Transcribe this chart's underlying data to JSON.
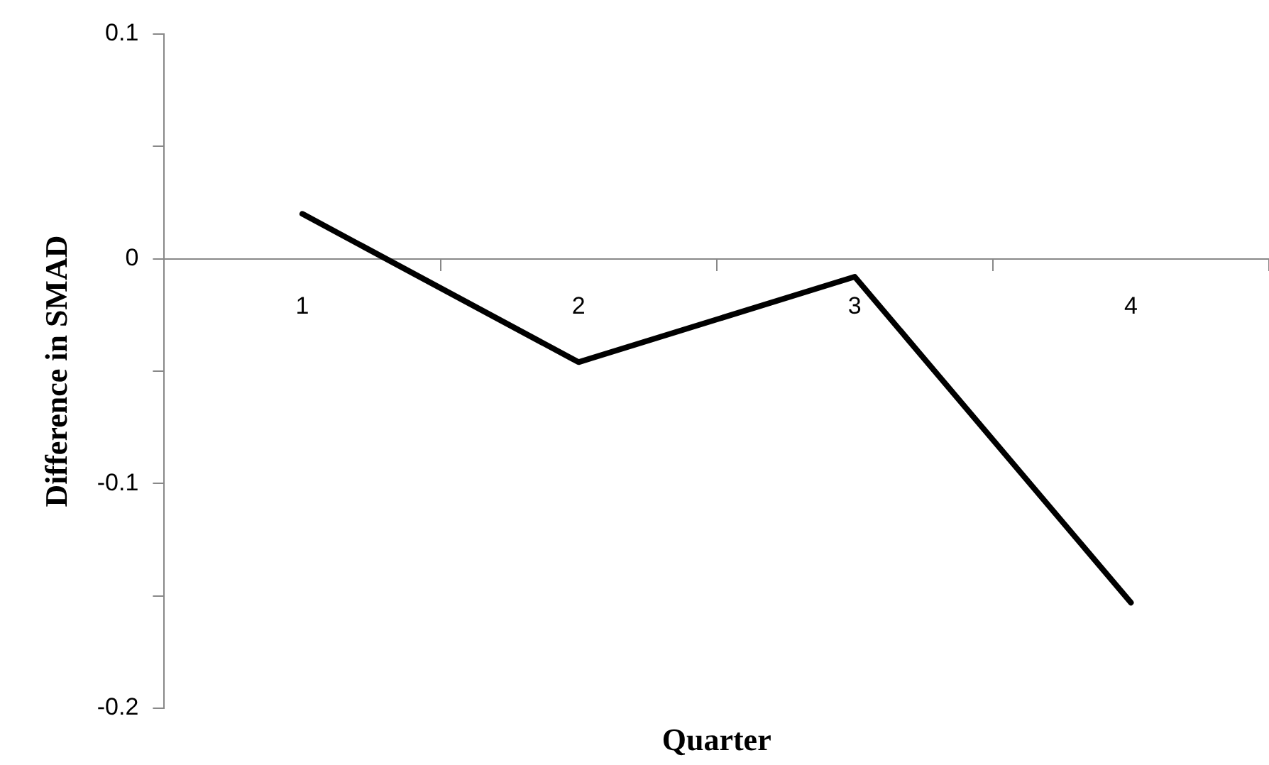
{
  "chart_data": {
    "type": "line",
    "xlabel": "Quarter",
    "ylabel": "Difference in SMAD",
    "categories": [
      "1",
      "2",
      "3",
      "4"
    ],
    "series": [
      {
        "color": "#000000",
        "values": [
          0.02,
          -0.046,
          -0.008,
          -0.153
        ]
      }
    ],
    "ylim": [
      -0.2,
      0.1
    ],
    "yticks": [
      -0.2,
      {
        "value": -0.15,
        "label": null
      },
      -0.1,
      {
        "value": -0.05,
        "label": null
      },
      0,
      {
        "value": 0.05,
        "label": null
      },
      0.1
    ],
    "grid": false,
    "legend": false,
    "marker": "none",
    "line_style": "solid"
  }
}
